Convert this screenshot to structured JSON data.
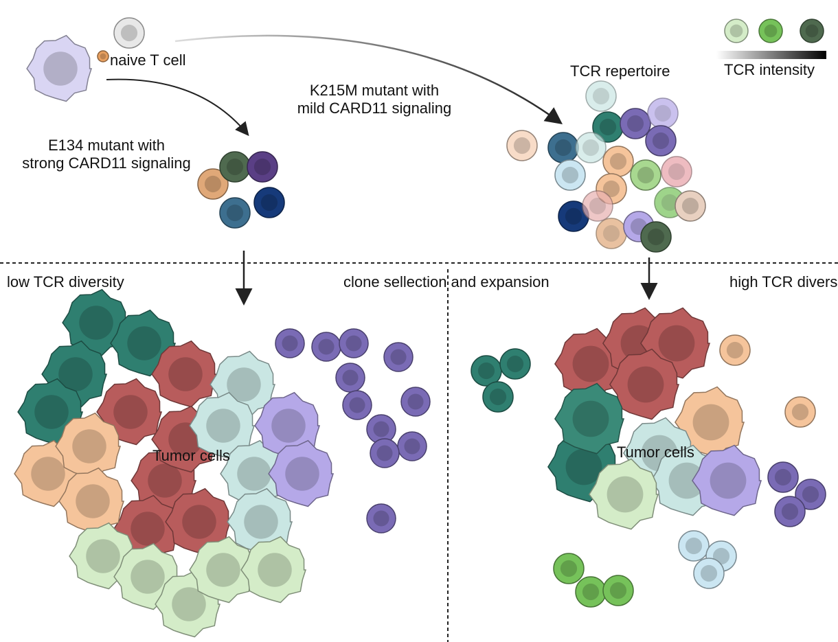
{
  "labels": {
    "naive_t_cell": "naive T cell",
    "e134_line1": "E134 mutant with",
    "e134_line2": "strong CARD11 signaling",
    "k215m_line1": "K215M mutant with",
    "k215m_line2": "mild CARD11 signaling",
    "tcr_repertoire": "TCR repertoire",
    "tcr_intensity": "TCR intensity",
    "low_diversity": "low TCR diversity",
    "clone_selection": "clone sellection and expansion",
    "high_diversity": "high TCR diversity",
    "tumor_left": "Tumor cells",
    "tumor_right": "Tumor cells"
  },
  "legend": {
    "intensity_levels": [
      "low",
      "medium",
      "high"
    ],
    "intensity_colors": [
      "#d4ecc8",
      "#76c25a",
      "#4f6a4f"
    ],
    "gradient": [
      "#ffffff",
      "#000000"
    ]
  },
  "colors": {
    "dendritic_cell": "#d9d5f3",
    "tumor": "#b85c5c",
    "treg_teal": "#2f7f70",
    "peach": "#f5c49b",
    "light_teal": "#c9e6e3",
    "light_green": "#d4ecc8",
    "purple_t_cell": "#7a6bb5",
    "lavender": "#b5a8e8",
    "arrow": "#222222"
  }
}
